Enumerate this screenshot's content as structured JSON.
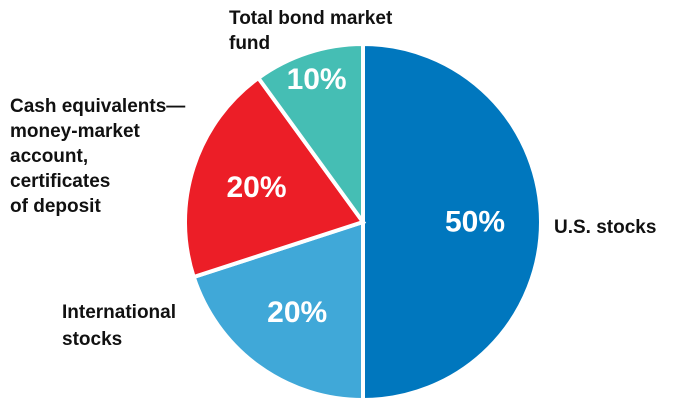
{
  "chart_data": {
    "type": "pie",
    "start_angle_deg": 0,
    "direction": "clockwise",
    "slice_border_color": "#ffffff",
    "slices": [
      {
        "label": "U.S. stocks",
        "value": 50,
        "value_label": "50%",
        "color": "#0077BE"
      },
      {
        "label": "International stocks",
        "value": 20,
        "value_label": "20%",
        "color": "#40A8D8"
      },
      {
        "label": "Cash equivalents—money-market account, certificates of deposit",
        "value": 20,
        "value_label": "20%",
        "color": "#EC1E27"
      },
      {
        "label": "Total bond market fund",
        "value": 10,
        "value_label": "10%",
        "color": "#45BEB4"
      }
    ]
  },
  "labels": {
    "us_stocks": [
      "U.S. stocks"
    ],
    "international_stocks": [
      "International",
      "stocks"
    ],
    "cash_equivalents": [
      "Cash equivalents—",
      "money-market",
      "account,",
      "certificates",
      "of deposit"
    ],
    "total_bond": [
      "Total bond market",
      "fund"
    ]
  }
}
